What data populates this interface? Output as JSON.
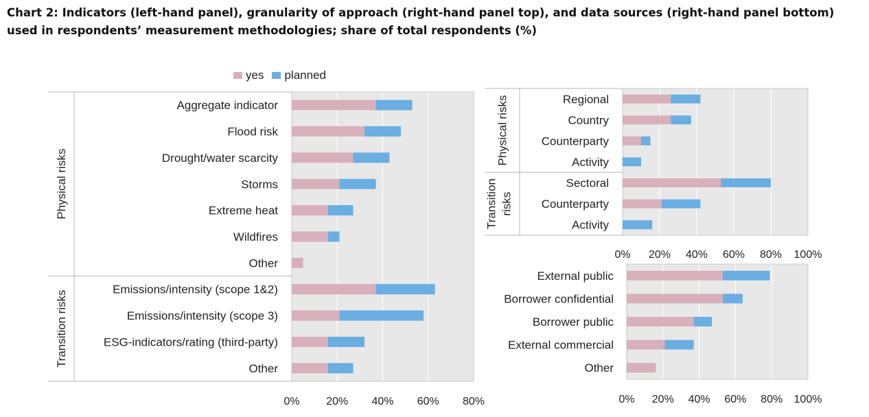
{
  "title": "Chart 2: Indicators (left-hand panel), granularity of approach (right-hand panel top), and data sources (right-hand panel bottom) used in respondents’ measurement methodologies; share of total respondents (%)",
  "legend": [
    {
      "name": "yes",
      "color": "#d8b0bc"
    },
    {
      "name": "planned",
      "color": "#6aaee2"
    }
  ],
  "chart_data": [
    {
      "type": "bar",
      "orientation": "horizontal",
      "stacked": true,
      "panel": "left",
      "groups": [
        {
          "label": "Physical risks",
          "categories": [
            "Aggregate indicator",
            "Flood risk",
            "Drought/water scarcity",
            "Storms",
            "Extreme heat",
            "Wildfires",
            "Other"
          ]
        },
        {
          "label": "Transition risks",
          "categories": [
            "Emissions/intensity (scope 1&2)",
            "Emissions/intensity (scope 3)",
            "ESG-indicators/rating (third-party)",
            "Other"
          ]
        }
      ],
      "categories": [
        "Aggregate indicator",
        "Flood risk",
        "Drought/water scarcity",
        "Storms",
        "Extreme heat",
        "Wildfires",
        "Other",
        "Emissions/intensity (scope 1&2)",
        "Emissions/intensity (scope 3)",
        "ESG-indicators/rating (third-party)",
        "Other"
      ],
      "series": [
        {
          "name": "yes",
          "values": [
            37,
            32,
            27,
            21,
            16,
            16,
            5,
            37,
            21,
            16,
            16
          ]
        },
        {
          "name": "planned",
          "values": [
            16,
            16,
            16,
            16,
            11,
            5,
            0,
            26,
            37,
            16,
            11
          ]
        }
      ],
      "xlim": [
        0,
        80
      ],
      "xticks": [
        "0%",
        "20%",
        "40%",
        "60%",
        "80%"
      ],
      "grid": true
    },
    {
      "type": "bar",
      "orientation": "horizontal",
      "stacked": true,
      "panel": "right-top",
      "groups": [
        {
          "label": "Physical risks",
          "categories": [
            "Regional",
            "Country",
            "Counterparty",
            "Activity"
          ]
        },
        {
          "label": "Transition risks",
          "categories": [
            "Sectoral",
            "Counterparty",
            "Activity"
          ]
        }
      ],
      "categories": [
        "Regional",
        "Country",
        "Counterparty",
        "Activity",
        "Sectoral",
        "Counterparty",
        "Activity"
      ],
      "series": [
        {
          "name": "yes",
          "values": [
            26,
            26,
            10,
            0,
            53,
            21,
            0
          ]
        },
        {
          "name": "planned",
          "values": [
            16,
            11,
            5,
            10,
            27,
            21,
            16
          ]
        }
      ],
      "xlim": [
        0,
        100
      ],
      "xticks": [
        "0%",
        "20%",
        "40%",
        "60%",
        "80%",
        "100%"
      ],
      "grid": true
    },
    {
      "type": "bar",
      "orientation": "horizontal",
      "stacked": true,
      "panel": "right-bottom",
      "categories": [
        "External public",
        "Borrower confidential",
        "Borrower public",
        "External commercial",
        "Other"
      ],
      "series": [
        {
          "name": "yes",
          "values": [
            53,
            53,
            37,
            21,
            16
          ]
        },
        {
          "name": "planned",
          "values": [
            26,
            11,
            10,
            16,
            0
          ]
        }
      ],
      "xlim": [
        0,
        100
      ],
      "xticks": [
        "0%",
        "20%",
        "40%",
        "60%",
        "80%",
        "100%"
      ],
      "grid": true
    }
  ]
}
